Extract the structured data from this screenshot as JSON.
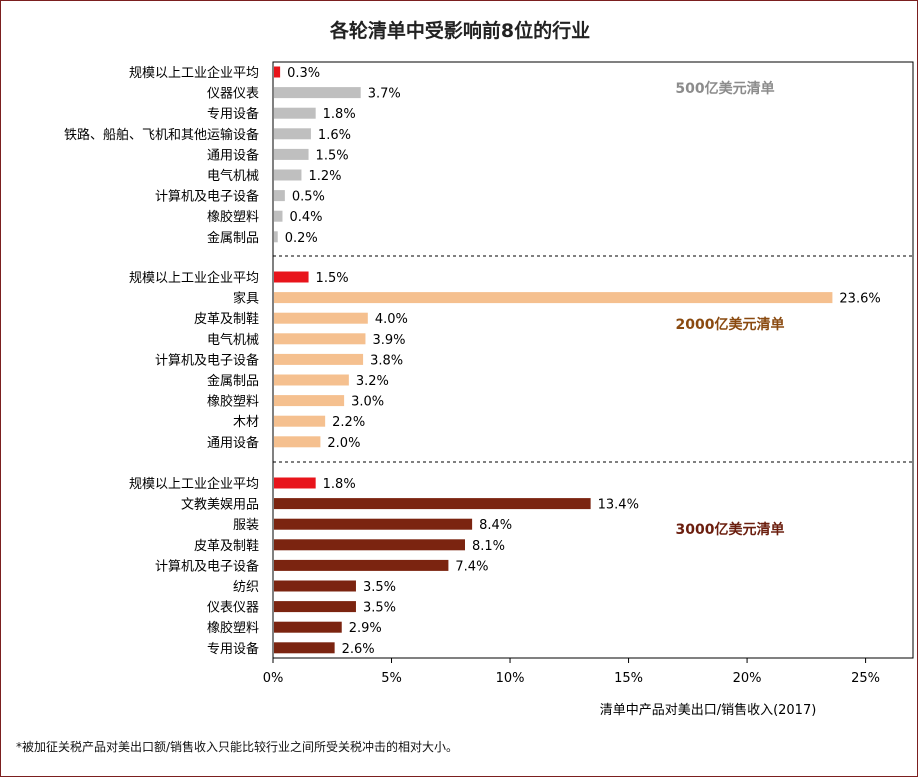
{
  "title": "各轮清单中受影响前8位的行业",
  "footnote": "*被加征关税产品对美出口额/销售收入只能比较行业之间所受关税冲击的相对大小。",
  "colors": {
    "average": "#e8141b",
    "g500": "#bfbfbf",
    "g2000": "#f5c08f",
    "g3000": "#7b2410",
    "label500": "#8c8c8c",
    "label2000": "#8a4a10",
    "label3000": "#6b1e0e"
  },
  "chart_data": {
    "type": "bar",
    "orientation": "horizontal",
    "title": "各轮清单中受影响前8位的行业",
    "xlabel": "清单中产品对美出口/销售收入(2017)",
    "xlim": [
      0,
      27
    ],
    "xticks": [
      0,
      5,
      10,
      15,
      20,
      25
    ],
    "xtick_labels": [
      "0%",
      "5%",
      "10%",
      "15%",
      "20%",
      "25%"
    ],
    "value_unit": "%",
    "groups": [
      {
        "name": "500亿美元清单",
        "color_key": "g500",
        "label_color_key": "label500",
        "categories": [
          "规模以上工业企业平均",
          "仪器仪表",
          "专用设备",
          "铁路、船舶、飞机和其他运输设备",
          "通用设备",
          "电气机械",
          "计算机及电子设备",
          "橡胶塑料",
          "金属制品"
        ],
        "values": [
          0.3,
          3.7,
          1.8,
          1.6,
          1.5,
          1.2,
          0.5,
          0.4,
          0.2
        ]
      },
      {
        "name": "2000亿美元清单",
        "color_key": "g2000",
        "label_color_key": "label2000",
        "categories": [
          "规模以上工业企业平均",
          "家具",
          "皮革及制鞋",
          "电气机械",
          "计算机及电子设备",
          "金属制品",
          "橡胶塑料",
          "木材",
          "通用设备"
        ],
        "values": [
          1.5,
          23.6,
          4.0,
          3.9,
          3.8,
          3.2,
          3.0,
          2.2,
          2.0
        ]
      },
      {
        "name": "3000亿美元清单",
        "color_key": "g3000",
        "label_color_key": "label3000",
        "categories": [
          "规模以上工业企业平均",
          "文教美娱用品",
          "服装",
          "皮革及制鞋",
          "计算机及电子设备",
          "纺织",
          "仪表仪器",
          "橡胶塑料",
          "专用设备"
        ],
        "values": [
          1.8,
          13.4,
          8.4,
          8.1,
          7.4,
          3.5,
          3.5,
          2.9,
          2.6
        ]
      }
    ]
  }
}
